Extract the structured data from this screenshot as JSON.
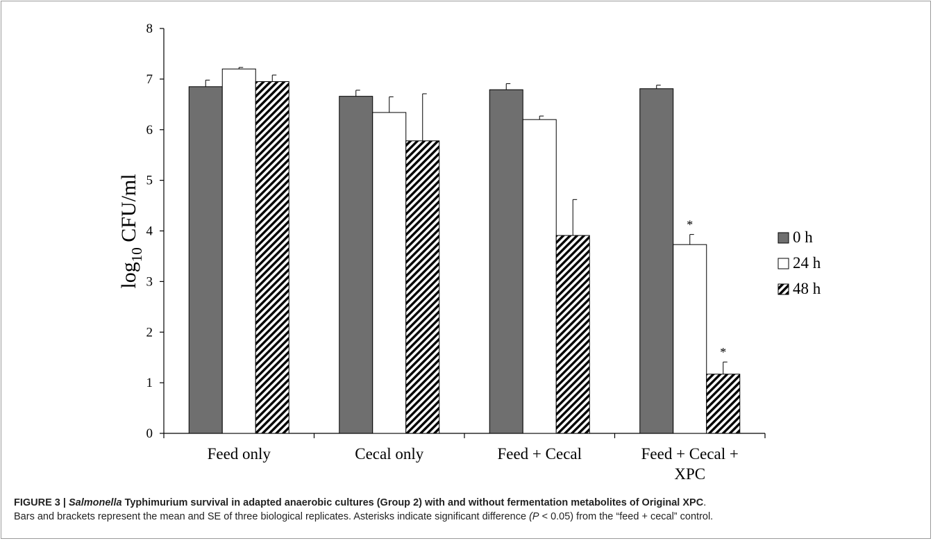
{
  "chart_data": {
    "type": "bar",
    "categories": [
      [
        "Feed only"
      ],
      [
        "Cecal only"
      ],
      [
        "Feed + Cecal"
      ],
      [
        "Feed + Cecal +",
        "XPC"
      ]
    ],
    "series": [
      {
        "name": "0 h",
        "values": [
          6.85,
          6.66,
          6.79,
          6.81
        ],
        "errors": [
          0.13,
          0.12,
          0.12,
          0.07
        ],
        "fill": "#6f6f6f",
        "pattern": "solid"
      },
      {
        "name": "24 h",
        "values": [
          7.2,
          6.34,
          6.2,
          3.73
        ],
        "errors": [
          0.03,
          0.31,
          0.07,
          0.2
        ],
        "fill": "#ffffff",
        "pattern": "solid"
      },
      {
        "name": "48 h",
        "values": [
          6.95,
          5.78,
          3.91,
          1.17
        ],
        "errors": [
          0.13,
          0.93,
          0.71,
          0.24
        ],
        "fill": "#ffffff",
        "pattern": "hatch"
      }
    ],
    "annotations": [
      {
        "category_index": 3,
        "series_index": 1,
        "text": "*"
      },
      {
        "category_index": 3,
        "series_index": 2,
        "text": "*"
      }
    ],
    "ylabel_prefix": "log",
    "ylabel_sub": "10",
    "ylabel_suffix": " CFU/ml",
    "ylim": [
      0,
      8
    ],
    "yticks": [
      "0",
      "1",
      "2",
      "3",
      "4",
      "5",
      "6",
      "7",
      "8"
    ],
    "grid": false,
    "legend_position": "right"
  },
  "caption": {
    "label": "FIGURE 3 | ",
    "title_italic": "Salmonella",
    "title_rest": " Typhimurium survival in adapted anaerobic cultures (Group 2) with and without fermentation metabolites of Original XPC",
    "title_end": ".",
    "body_1": "Bars and brackets represent the mean and SE of three biological replicates. Asterisks indicate significant difference ",
    "body_italic": "(P",
    "body_2": " < 0.05) from the “feed + cecal” control."
  },
  "colors": {
    "dark_bar": "#6f6f6f",
    "axis": "#000000",
    "frame_border": "#9a9a9a"
  }
}
